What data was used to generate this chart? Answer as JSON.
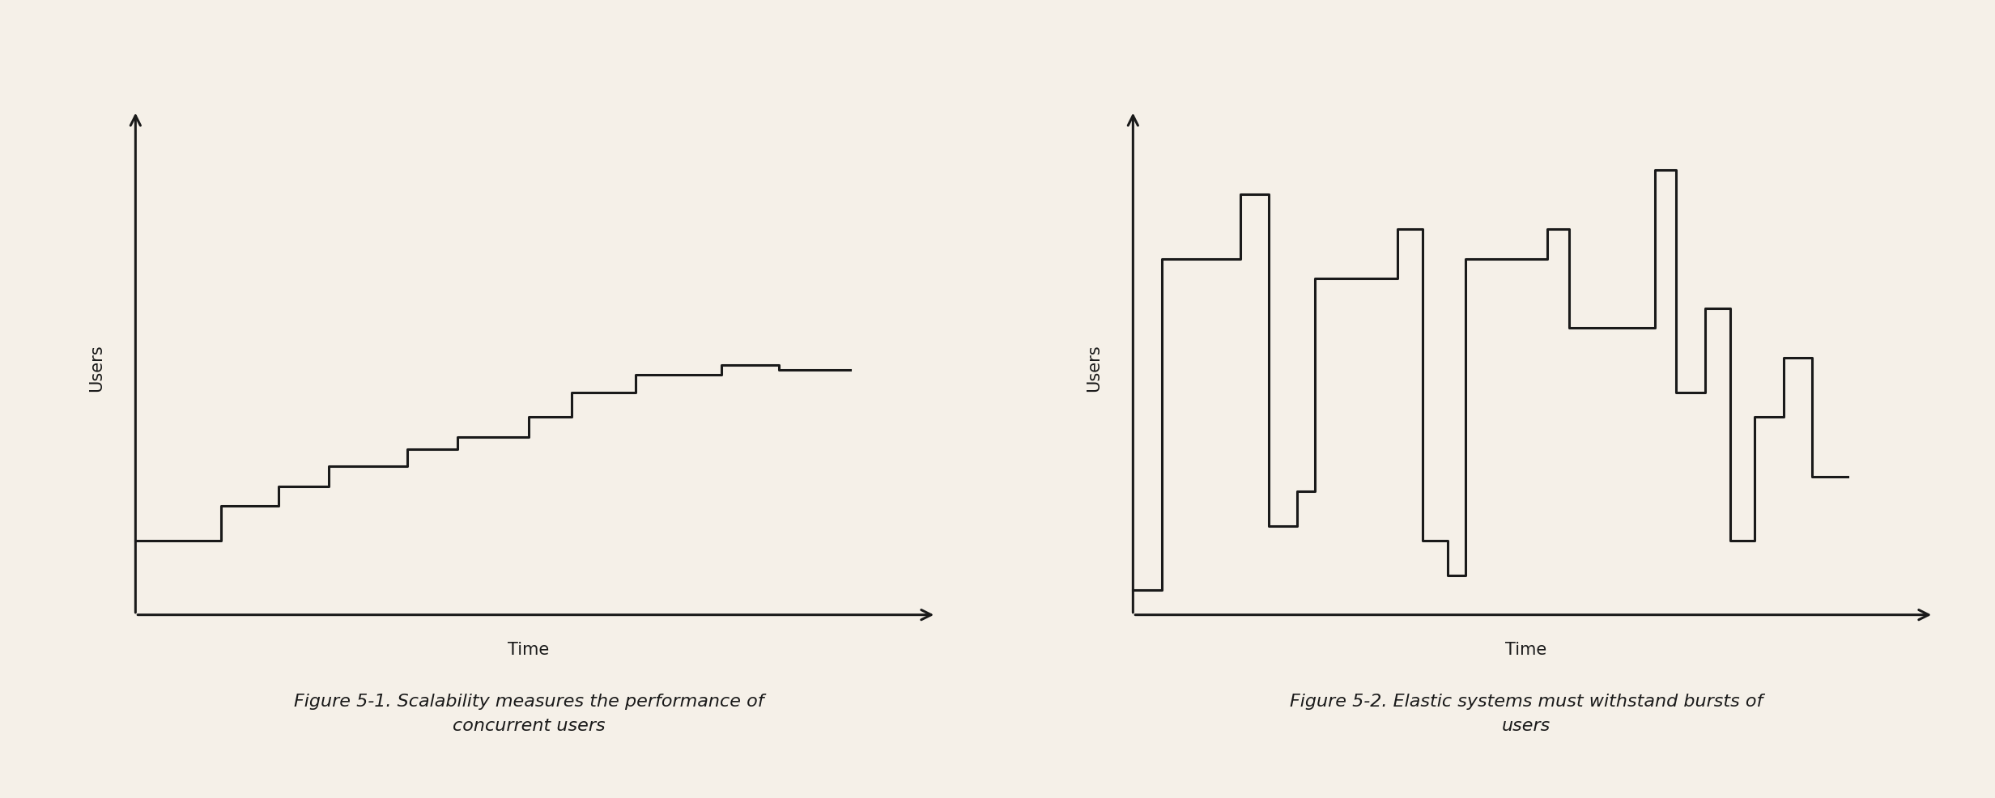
{
  "background_color": "#f5f0e8",
  "line_color": "#1a1a1a",
  "line_width": 2.2,
  "fig1_caption": "Figure 5-1. Scalability measures the performance of\nconcurrent users",
  "fig2_caption": "Figure 5-2. Elastic systems must withstand bursts of\nusers",
  "ylabel": "Users",
  "xlabel": "Time",
  "scalability_x": [
    0.0,
    1.2,
    1.2,
    2.0,
    2.0,
    2.7,
    2.7,
    3.8,
    3.8,
    4.5,
    4.5,
    5.5,
    5.5,
    6.1,
    6.1,
    7.0,
    7.0,
    8.2,
    8.2,
    9.0,
    9.0,
    10.0
  ],
  "scalability_y": [
    1.5,
    1.5,
    2.2,
    2.2,
    2.6,
    2.6,
    3.0,
    3.0,
    3.35,
    3.35,
    3.6,
    3.6,
    4.0,
    4.0,
    4.5,
    4.5,
    4.85,
    4.85,
    5.05,
    5.05,
    4.95,
    4.95
  ],
  "elasticity_x": [
    0.0,
    0.4,
    0.4,
    1.5,
    1.5,
    1.9,
    1.9,
    2.3,
    2.3,
    2.55,
    2.55,
    3.7,
    3.7,
    4.05,
    4.05,
    4.4,
    4.4,
    4.65,
    4.65,
    5.8,
    5.8,
    6.1,
    6.1,
    7.3,
    7.3,
    7.6,
    7.6,
    8.0,
    8.0,
    8.35,
    8.35,
    8.7,
    8.7,
    9.1,
    9.1,
    9.5,
    9.5,
    10.0
  ],
  "elasticity_y": [
    0.5,
    0.5,
    7.2,
    7.2,
    8.5,
    8.5,
    1.8,
    1.8,
    2.5,
    2.5,
    6.8,
    6.8,
    7.8,
    7.8,
    1.5,
    1.5,
    0.8,
    0.8,
    7.2,
    7.2,
    7.8,
    7.8,
    5.8,
    5.8,
    9.0,
    9.0,
    4.5,
    4.5,
    6.2,
    6.2,
    1.5,
    1.5,
    4.0,
    4.0,
    5.2,
    5.2,
    2.8,
    2.8
  ],
  "caption_fontsize": 16,
  "label_fontsize": 15,
  "caption_style": "italic",
  "xlim": [
    -0.5,
    11.5
  ],
  "ylim": [
    -0.8,
    10.5
  ],
  "xaxis_end": 11.2,
  "yaxis_end": 10.2
}
